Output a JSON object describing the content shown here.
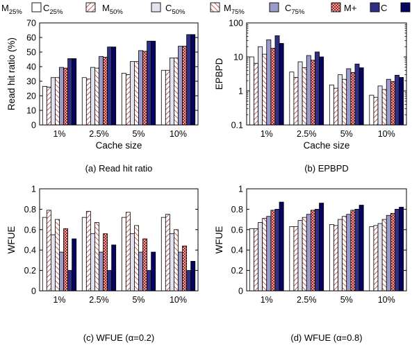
{
  "legend": [
    {
      "base": "M",
      "sub": "25%",
      "style": "m25",
      "color": "#ffffff"
    },
    {
      "base": "C",
      "sub": "25%",
      "style": "c25",
      "color": "#c0392b"
    },
    {
      "base": "M",
      "sub": "50%",
      "style": "m50",
      "color": "#dcdcef"
    },
    {
      "base": "C",
      "sub": "50%",
      "style": "c50",
      "color": "#c0392b"
    },
    {
      "base": "M",
      "sub": "75%",
      "style": "m75",
      "color": "#9a9ac8"
    },
    {
      "base": "C",
      "sub": "75%",
      "style": "c75",
      "color": "#a02020"
    },
    {
      "base": "M+",
      "sub": "",
      "style": "mplus",
      "color": "#3a3a8f"
    },
    {
      "base": "C",
      "sub": "",
      "style": "c",
      "color": "#0a0a6a"
    }
  ],
  "chart_data": [
    {
      "type": "bar",
      "panel": "a",
      "caption": "(a) Read hit ratio",
      "xlabel": "Cache size",
      "ylabel": "Read hit ratio (%)",
      "categories": [
        "1%",
        "2.5%",
        "5%",
        "10%"
      ],
      "ylim": [
        0,
        70
      ],
      "yticks": [
        0,
        10,
        20,
        30,
        40,
        50,
        60,
        70
      ],
      "scale": "linear",
      "series": [
        {
          "name": "M25%",
          "values": [
            26.5,
            32.5,
            35.5,
            37.5
          ]
        },
        {
          "name": "C25%",
          "values": [
            26,
            31.5,
            34.5,
            37.5
          ]
        },
        {
          "name": "M50%",
          "values": [
            32.5,
            39.5,
            43.5,
            46
          ]
        },
        {
          "name": "C50%",
          "values": [
            32.5,
            39,
            43.5,
            46
          ]
        },
        {
          "name": "M75%",
          "values": [
            39.5,
            47,
            51,
            54
          ]
        },
        {
          "name": "C75%",
          "values": [
            39,
            46.5,
            50.5,
            54
          ]
        },
        {
          "name": "M+",
          "values": [
            45.5,
            53.5,
            57.5,
            62
          ]
        },
        {
          "name": "C",
          "values": [
            45.5,
            53.5,
            57.5,
            62
          ]
        }
      ]
    },
    {
      "type": "bar",
      "panel": "b",
      "caption": "(b) EPBPD",
      "xlabel": "Cache size",
      "ylabel": "EPBPD",
      "categories": [
        "1%",
        "2.5%",
        "5%",
        "10%"
      ],
      "ylim": [
        0.1,
        100
      ],
      "yticks": [
        0.1,
        1,
        10,
        100
      ],
      "ytick_labels": [
        "0.1",
        "1",
        "10",
        "100"
      ],
      "scale": "log",
      "series": [
        {
          "name": "M25%",
          "values": [
            10,
            3.6,
            1.5,
            0.75
          ]
        },
        {
          "name": "C25%",
          "values": [
            6.5,
            2.5,
            1.2,
            0.65
          ]
        },
        {
          "name": "M50%",
          "values": [
            20,
            7.2,
            3.0,
            1.4
          ]
        },
        {
          "name": "C50%",
          "values": [
            12,
            4.8,
            2.2,
            1.1
          ]
        },
        {
          "name": "M75%",
          "values": [
            32,
            11,
            4.5,
            2.2
          ]
        },
        {
          "name": "C75%",
          "values": [
            18,
            8,
            3.5,
            1.9
          ]
        },
        {
          "name": "M+",
          "values": [
            42,
            14,
            6.2,
            2.9
          ]
        },
        {
          "name": "C",
          "values": [
            25,
            10,
            4.8,
            2.5
          ]
        }
      ]
    },
    {
      "type": "bar",
      "panel": "c",
      "caption": "(c) WFUE (α=0.2)",
      "xlabel": "",
      "ylabel": "WFUE",
      "categories": [
        "1%",
        "2.5%",
        "5%",
        "10%"
      ],
      "ylim": [
        0,
        1
      ],
      "yticks": [
        0,
        0.2,
        0.4,
        0.6,
        0.8,
        1
      ],
      "ytick_labels": [
        "0",
        "0.2",
        "0.4",
        "0.6",
        "0.8",
        "1"
      ],
      "scale": "linear",
      "series": [
        {
          "name": "M25%",
          "values": [
            0.72,
            0.72,
            0.72,
            0.72
          ]
        },
        {
          "name": "C25%",
          "values": [
            0.79,
            0.78,
            0.77,
            0.75
          ]
        },
        {
          "name": "M50%",
          "values": [
            0.55,
            0.56,
            0.56,
            0.56
          ]
        },
        {
          "name": "C50%",
          "values": [
            0.7,
            0.67,
            0.64,
            0.6
          ]
        },
        {
          "name": "M75%",
          "values": [
            0.38,
            0.38,
            0.38,
            0.38
          ]
        },
        {
          "name": "C75%",
          "values": [
            0.61,
            0.56,
            0.51,
            0.44
          ]
        },
        {
          "name": "M+",
          "values": [
            0.2,
            0.2,
            0.2,
            0.2
          ]
        },
        {
          "name": "C",
          "values": [
            0.51,
            0.45,
            0.38,
            0.29
          ]
        }
      ]
    },
    {
      "type": "bar",
      "panel": "d",
      "caption": "(d) WFUE (α=0.8)",
      "xlabel": "",
      "ylabel": "WFUE",
      "categories": [
        "1%",
        "2.5%",
        "5%",
        "10%"
      ],
      "ylim": [
        0,
        1
      ],
      "yticks": [
        0,
        0.2,
        0.4,
        0.6,
        0.8,
        1
      ],
      "ytick_labels": [
        "0",
        "0.2",
        "0.4",
        "0.6",
        "0.8",
        "1"
      ],
      "scale": "linear",
      "series": [
        {
          "name": "M25%",
          "values": [
            0.61,
            0.63,
            0.65,
            0.63
          ]
        },
        {
          "name": "C25%",
          "values": [
            0.61,
            0.63,
            0.64,
            0.64
          ]
        },
        {
          "name": "M50%",
          "values": [
            0.67,
            0.69,
            0.7,
            0.66
          ]
        },
        {
          "name": "C50%",
          "values": [
            0.71,
            0.72,
            0.73,
            0.7
          ]
        },
        {
          "name": "M75%",
          "values": [
            0.73,
            0.75,
            0.75,
            0.74
          ]
        },
        {
          "name": "C75%",
          "values": [
            0.79,
            0.79,
            0.79,
            0.76
          ]
        },
        {
          "name": "M+",
          "values": [
            0.8,
            0.8,
            0.8,
            0.8
          ]
        },
        {
          "name": "C",
          "values": [
            0.87,
            0.86,
            0.84,
            0.82
          ]
        }
      ]
    }
  ]
}
